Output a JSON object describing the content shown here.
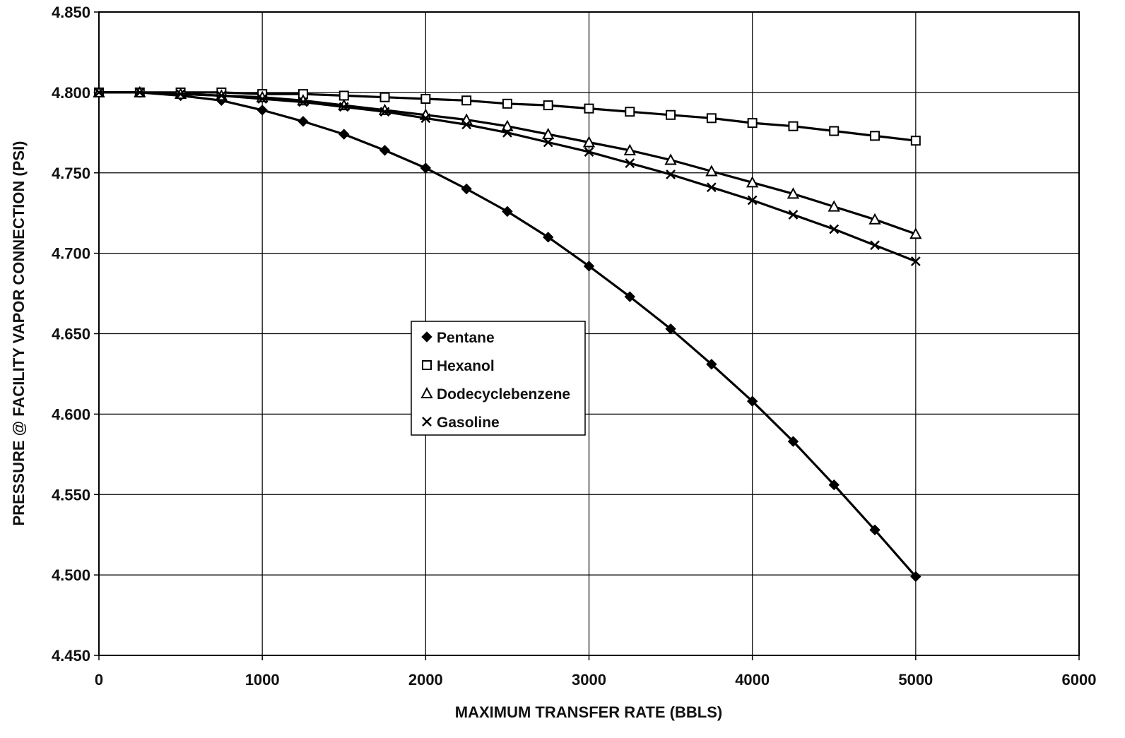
{
  "chart_data": {
    "type": "line",
    "title": "",
    "xlabel": "MAXIMUM TRANSFER RATE (BBLS)",
    "ylabel": "PRESSURE @ FACILITY VAPOR CONNECTION (PSI)",
    "xlim": [
      0,
      6000
    ],
    "ylim": [
      4.45,
      4.85
    ],
    "x_ticks": [
      0,
      1000,
      2000,
      3000,
      4000,
      5000,
      6000
    ],
    "x_tick_labels": [
      "0",
      "1000",
      "2000",
      "3000",
      "4000",
      "5000",
      "6000"
    ],
    "y_ticks": [
      4.45,
      4.5,
      4.55,
      4.6,
      4.65,
      4.7,
      4.75,
      4.8,
      4.85
    ],
    "y_tick_labels": [
      "4.450",
      "4.500",
      "4.550",
      "4.600",
      "4.650",
      "4.700",
      "4.750",
      "4.800",
      "4.850"
    ],
    "grid": true,
    "legend_position": "center",
    "x": [
      0,
      250,
      500,
      750,
      1000,
      1250,
      1500,
      1750,
      2000,
      2250,
      2500,
      2750,
      3000,
      3250,
      3500,
      3750,
      4000,
      4250,
      4500,
      4750,
      5000
    ],
    "series": [
      {
        "name": "Pentane",
        "marker": "diamond",
        "values": [
          4.8,
          4.8,
          4.798,
          4.795,
          4.789,
          4.782,
          4.774,
          4.764,
          4.753,
          4.74,
          4.726,
          4.71,
          4.692,
          4.673,
          4.653,
          4.631,
          4.608,
          4.583,
          4.556,
          4.528,
          4.499
        ]
      },
      {
        "name": "Hexanol",
        "marker": "square",
        "values": [
          4.8,
          4.8,
          4.8,
          4.8,
          4.799,
          4.799,
          4.798,
          4.797,
          4.796,
          4.795,
          4.793,
          4.792,
          4.79,
          4.788,
          4.786,
          4.784,
          4.781,
          4.779,
          4.776,
          4.773,
          4.77
        ]
      },
      {
        "name": "Dodecyclebenzene",
        "marker": "triangle",
        "values": [
          4.8,
          4.8,
          4.799,
          4.798,
          4.797,
          4.795,
          4.792,
          4.789,
          4.786,
          4.783,
          4.779,
          4.774,
          4.769,
          4.764,
          4.758,
          4.751,
          4.744,
          4.737,
          4.729,
          4.721,
          4.712
        ]
      },
      {
        "name": "Gasoline",
        "marker": "x",
        "values": [
          4.8,
          4.8,
          4.799,
          4.798,
          4.796,
          4.794,
          4.791,
          4.788,
          4.784,
          4.78,
          4.775,
          4.769,
          4.763,
          4.756,
          4.749,
          4.741,
          4.733,
          4.724,
          4.715,
          4.705,
          4.695
        ]
      }
    ]
  }
}
